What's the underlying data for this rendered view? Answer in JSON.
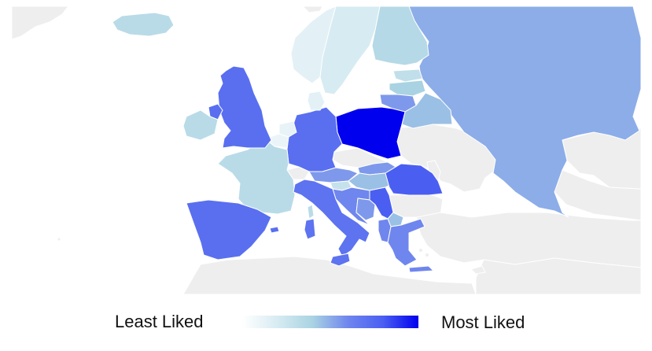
{
  "legend": {
    "min_label": "Least Liked",
    "max_label": "Most Liked",
    "gradient_colors": [
      "#ffffff",
      "#d7ebf2",
      "#a9d3e2",
      "#6f86ee",
      "#4a5ff2",
      "#0000ee"
    ]
  },
  "palette": {
    "background": "#ffffff",
    "sea": "#ffffff",
    "no_data_land": "#eeeeee",
    "border": "#ffffff"
  },
  "countries": [
    {
      "id": "poland",
      "score": 1.0
    },
    {
      "id": "romania",
      "score": 0.8
    },
    {
      "id": "serbia",
      "score": 0.8
    },
    {
      "id": "uk",
      "score": 0.72
    },
    {
      "id": "spain",
      "score": 0.72
    },
    {
      "id": "germany",
      "score": 0.72
    },
    {
      "id": "italy",
      "score": 0.7
    },
    {
      "id": "northern-ireland",
      "score": 0.72
    },
    {
      "id": "greece",
      "score": 0.6
    },
    {
      "id": "croatia",
      "score": 0.6
    },
    {
      "id": "bosnia",
      "score": 0.55
    },
    {
      "id": "albania",
      "score": 0.6
    },
    {
      "id": "lithuania",
      "score": 0.55
    },
    {
      "id": "austria",
      "score": 0.55
    },
    {
      "id": "slovakia",
      "score": 0.55
    },
    {
      "id": "russia",
      "score": 0.5
    },
    {
      "id": "belarus",
      "score": 0.45
    },
    {
      "id": "hungary",
      "score": 0.45
    },
    {
      "id": "macedonia",
      "score": 0.45
    },
    {
      "id": "latvia",
      "score": 0.4
    },
    {
      "id": "finland",
      "score": 0.35
    },
    {
      "id": "iceland",
      "score": 0.33
    },
    {
      "id": "france",
      "score": 0.33
    },
    {
      "id": "ireland",
      "score": 0.33
    },
    {
      "id": "estonia",
      "score": 0.3
    },
    {
      "id": "slovenia",
      "score": 0.28
    },
    {
      "id": "sweden",
      "score": 0.2
    },
    {
      "id": "norway",
      "score": 0.14
    },
    {
      "id": "denmark",
      "score": 0.14
    },
    {
      "id": "netherlands",
      "score": 0.12
    },
    {
      "id": "belgium",
      "score": 0.1
    }
  ]
}
